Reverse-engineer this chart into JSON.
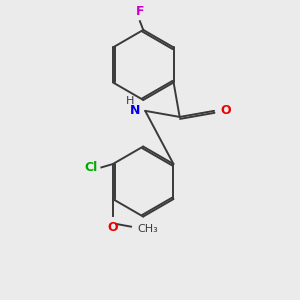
{
  "background_color": "#ebebeb",
  "bond_color": "#3a3a3a",
  "atom_colors": {
    "F": "#cc00cc",
    "N": "#0000ee",
    "O": "#ee0000",
    "Cl": "#00aa00",
    "H": "#3a3a3a"
  },
  "figsize": [
    3.0,
    3.0
  ],
  "dpi": 100
}
